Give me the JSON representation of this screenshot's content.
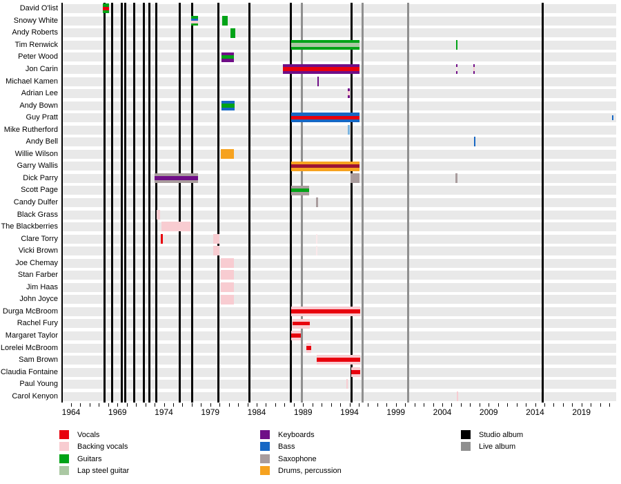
{
  "colors": {
    "vocals": "#e8000d",
    "backing_vocals": "#f8ccd1",
    "backing_vocals_faint": "#fce9eb",
    "guitars": "#00a317",
    "lap_steel_guitar": "#abc8a3",
    "keyboards": "#6f0e87",
    "bass": "#1767c4",
    "bass_faint": "#7ab4e0",
    "saxophone": "#a99c9d",
    "drums": "#f6a21f",
    "drums_accent": "#9d1334",
    "studio_album": "#000000",
    "live_album": "#8f8f8f",
    "row_band": "#e9e9e9"
  },
  "chart_data": {
    "type": "timeline-gantt",
    "x_axis": {
      "start": 1964,
      "end": 2022,
      "tick_labels": [
        1964,
        1969,
        1974,
        1979,
        1984,
        1989,
        1994,
        1999,
        2004,
        2009,
        2014,
        2019
      ]
    },
    "rows": [
      "David O'list",
      "Snowy White",
      "Andy Roberts",
      "Tim Renwick",
      "Peter Wood",
      "Jon Carin",
      "Michael Kamen",
      "Adrian Lee",
      "Andy Bown",
      "Guy Pratt",
      "Mike Rutherford",
      "Andy Bell",
      "Willie Wilson",
      "Garry Wallis",
      "Dick Parry",
      "Scott Page",
      "Candy Dulfer",
      "Black Grass",
      "The Blackberries",
      "Clare Torry",
      "Vicki Brown",
      "Joe Chemay",
      "Stan Farber",
      "Jim Haas",
      "John Joyce",
      "Durga McBroom",
      "Rachel Fury",
      "Margaret Taylor",
      "Lorelei McBroom",
      "Sam Brown",
      "Claudia Fontaine",
      "Paul Young",
      "Carol Kenyon"
    ],
    "studio_albums": [
      1967.6,
      1968.45,
      1969.45,
      1969.8,
      1970.8,
      1971.85,
      1972.45,
      1973.2,
      1975.7,
      1977.05,
      1979.9,
      1983.25,
      1987.7,
      1994.25,
      2014.85
    ],
    "live_albums": [
      1988.9,
      1995.4,
      2000.3
    ],
    "bars": [
      {
        "row": 0,
        "start": 1967.42,
        "end": 1968.08,
        "stripes": [
          "guitars",
          "vocals",
          "guitars"
        ]
      },
      {
        "row": 1,
        "start": 1976.95,
        "end": 1977.7,
        "stripes": [
          "guitars",
          "bass",
          "backing_vocals",
          "guitars"
        ]
      },
      {
        "row": 1,
        "start": 1980.25,
        "end": 1980.9,
        "stripes": [
          "guitars"
        ]
      },
      {
        "row": 2,
        "start": 1981.15,
        "end": 1981.68,
        "stripes": [
          "guitars"
        ]
      },
      {
        "row": 3,
        "start": 1987.75,
        "end": 1995.1,
        "stripes": [
          "guitars",
          "lap_steel_guitar",
          "guitars"
        ]
      },
      {
        "row": 3,
        "at": 2005.55,
        "w": 2.5,
        "stripes": [
          "guitars"
        ]
      },
      {
        "row": 4,
        "start": 1980.2,
        "end": 1981.55,
        "stripes": [
          "keyboards",
          "guitars",
          "keyboards"
        ]
      },
      {
        "row": 5,
        "start": 1986.83,
        "end": 1995.1,
        "stripes": [
          "keyboards",
          "vocals",
          "keyboards"
        ]
      },
      {
        "row": 5,
        "at": 2005.55,
        "w": 2.5,
        "stripes": [
          "keyboards",
          "backing_vocals_faint",
          "keyboards"
        ]
      },
      {
        "row": 5,
        "at": 2007.42,
        "w": 2,
        "stripes": [
          "keyboards",
          "backing_vocals",
          "keyboards"
        ]
      },
      {
        "row": 6,
        "at": 1990.6,
        "w": 2,
        "stripes": [
          "keyboards"
        ]
      },
      {
        "row": 7,
        "at": 1993.92,
        "w": 2.5,
        "stripes": [
          "keyboards",
          "backing_vocals",
          "keyboards"
        ]
      },
      {
        "row": 8,
        "start": 1980.2,
        "end": 1981.6,
        "stripes": [
          "bass",
          "guitars",
          "bass"
        ]
      },
      {
        "row": 9,
        "start": 1987.75,
        "end": 1995.1,
        "stripes": [
          "bass",
          "vocals",
          "bass"
        ]
      },
      {
        "row": 9,
        "at": 2022.36,
        "w": 2.5,
        "hf": 0.5,
        "stripes": [
          "bass"
        ]
      },
      {
        "row": 10,
        "at": 1993.92,
        "w": 2.5,
        "stripes": [
          "bass_faint"
        ]
      },
      {
        "row": 11,
        "at": 2007.5,
        "w": 2.5,
        "stripes": [
          "bass"
        ]
      },
      {
        "row": 12,
        "start": 1980.17,
        "end": 1981.51,
        "stripes": [
          "drums"
        ]
      },
      {
        "row": 13,
        "start": 1987.75,
        "end": 1995.1,
        "stripes": [
          "drums",
          "drums_accent",
          "drums"
        ]
      },
      {
        "row": 14,
        "start": 1973.0,
        "end": 1977.7,
        "stripes": [
          "saxophone",
          "keyboards",
          "saxophone"
        ]
      },
      {
        "row": 14,
        "start": 1994.1,
        "end": 1995.1,
        "stripes": [
          "saxophone"
        ]
      },
      {
        "row": 14,
        "at": 2005.55,
        "w": 3,
        "stripes": [
          "saxophone"
        ]
      },
      {
        "row": 15,
        "start": 1987.75,
        "end": 1989.65,
        "stripes": [
          "saxophone",
          "guitars",
          "saxophone"
        ]
      },
      {
        "row": 16,
        "at": 1990.5,
        "w": 2.5,
        "stripes": [
          "saxophone"
        ]
      },
      {
        "row": 17,
        "start": 1973.2,
        "end": 1973.6,
        "stripes": [
          "backing_vocals"
        ]
      },
      {
        "row": 18,
        "start": 1973.75,
        "end": 1976.9,
        "stripes": [
          "backing_vocals"
        ]
      },
      {
        "row": 19,
        "start": 1973.66,
        "end": 1973.86,
        "stripes": [
          "vocals"
        ]
      },
      {
        "row": 19,
        "start": 1979.35,
        "end": 1979.95,
        "stripes": [
          "backing_vocals"
        ]
      },
      {
        "row": 19,
        "at": 1990.5,
        "w": 2,
        "stripes": [
          "backing_vocals_faint"
        ]
      },
      {
        "row": 20,
        "start": 1979.35,
        "end": 1979.95,
        "stripes": [
          "backing_vocals"
        ]
      },
      {
        "row": 20,
        "at": 1990.5,
        "w": 2,
        "stripes": [
          "backing_vocals_faint"
        ]
      },
      {
        "row": 21,
        "start": 1980.17,
        "end": 1981.51,
        "stripes": [
          "backing_vocals"
        ]
      },
      {
        "row": 22,
        "start": 1980.17,
        "end": 1981.51,
        "stripes": [
          "backing_vocals"
        ]
      },
      {
        "row": 23,
        "start": 1980.17,
        "end": 1981.51,
        "stripes": [
          "backing_vocals"
        ]
      },
      {
        "row": 24,
        "start": 1980.17,
        "end": 1981.51,
        "stripes": [
          "backing_vocals"
        ]
      },
      {
        "row": 25,
        "start": 1987.75,
        "end": 1995.12,
        "stripes": [
          "backing_vocals",
          "vocals",
          "backing_vocals"
        ]
      },
      {
        "row": 26,
        "start": 1987.85,
        "end": 1989.7,
        "stripes": [
          "backing_vocals",
          "vocals",
          "backing_vocals"
        ]
      },
      {
        "row": 27,
        "start": 1987.75,
        "end": 1988.76,
        "stripes": [
          "backing_vocals",
          "vocals",
          "backing_vocals"
        ]
      },
      {
        "row": 28,
        "start": 1989.35,
        "end": 1989.85,
        "stripes": [
          "backing_vocals",
          "vocals",
          "backing_vocals"
        ]
      },
      {
        "row": 29,
        "start": 1990.5,
        "end": 1995.12,
        "stripes": [
          "backing_vocals",
          "vocals",
          "backing_vocals"
        ]
      },
      {
        "row": 30,
        "start": 1994.2,
        "end": 1995.12,
        "stripes": [
          "backing_vocals",
          "vocals",
          "backing_vocals"
        ]
      },
      {
        "row": 31,
        "at": 1993.77,
        "w": 2,
        "stripes": [
          "backing_vocals"
        ]
      },
      {
        "row": 32,
        "at": 2005.65,
        "w": 2,
        "stripes": [
          "backing_vocals"
        ]
      }
    ],
    "legend": {
      "roles": [
        {
          "label": "Vocals",
          "key": "vocals"
        },
        {
          "label": "Backing vocals",
          "key": "backing_vocals"
        },
        {
          "label": "Guitars",
          "key": "guitars"
        },
        {
          "label": "Lap steel guitar",
          "key": "lap_steel_guitar"
        },
        {
          "label": "Keyboards",
          "key": "keyboards"
        },
        {
          "label": "Bass",
          "key": "bass"
        },
        {
          "label": "Saxophone",
          "key": "saxophone"
        },
        {
          "label": "Drums, percussion",
          "key": "drums"
        }
      ],
      "albums": [
        {
          "label": "Studio album",
          "key": "studio_album"
        },
        {
          "label": "Live album",
          "key": "live_album"
        }
      ]
    }
  }
}
